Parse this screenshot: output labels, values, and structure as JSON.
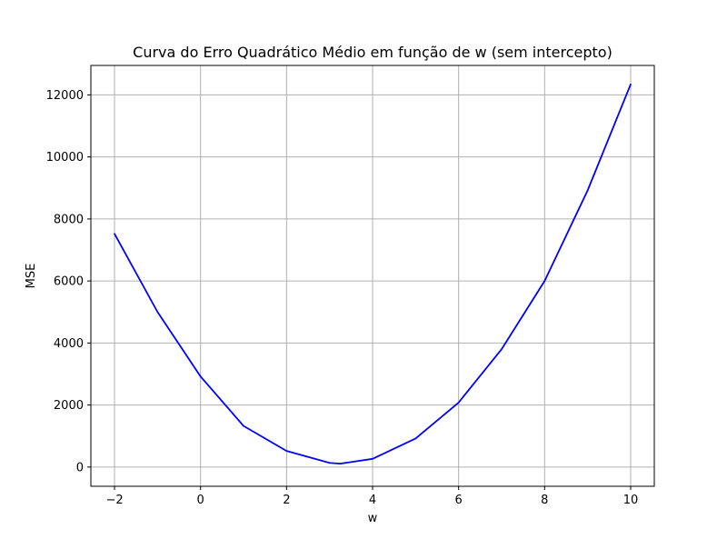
{
  "chart_data": {
    "type": "line",
    "title": "Curva do Erro Quadrático Médio em função de w (sem intercepto)",
    "xlabel": "w",
    "ylabel": "MSE",
    "xlim": [
      -2.55,
      10.55
    ],
    "ylim": [
      -620,
      12950
    ],
    "xticks": [
      -2,
      0,
      2,
      4,
      6,
      8,
      10
    ],
    "yticks": [
      0,
      2000,
      4000,
      6000,
      8000,
      10000,
      12000
    ],
    "xtick_labels": [
      "−2",
      "0",
      "2",
      "4",
      "6",
      "8",
      "10"
    ],
    "ytick_labels": [
      "0",
      "2000",
      "4000",
      "6000",
      "8000",
      "10000",
      "12000"
    ],
    "grid": true,
    "line_color": "#0000ff",
    "grid_color": "#b0b0b0",
    "series": [
      {
        "x": [
          -2,
          -1,
          0,
          1,
          2,
          3,
          3.25,
          4,
          5,
          6,
          7,
          8,
          9,
          10
        ],
        "values": [
          7520,
          5000,
          2920,
          1325,
          520,
          135,
          110,
          265,
          920,
          2080,
          3800,
          6000,
          8920,
          12340
        ]
      }
    ]
  }
}
